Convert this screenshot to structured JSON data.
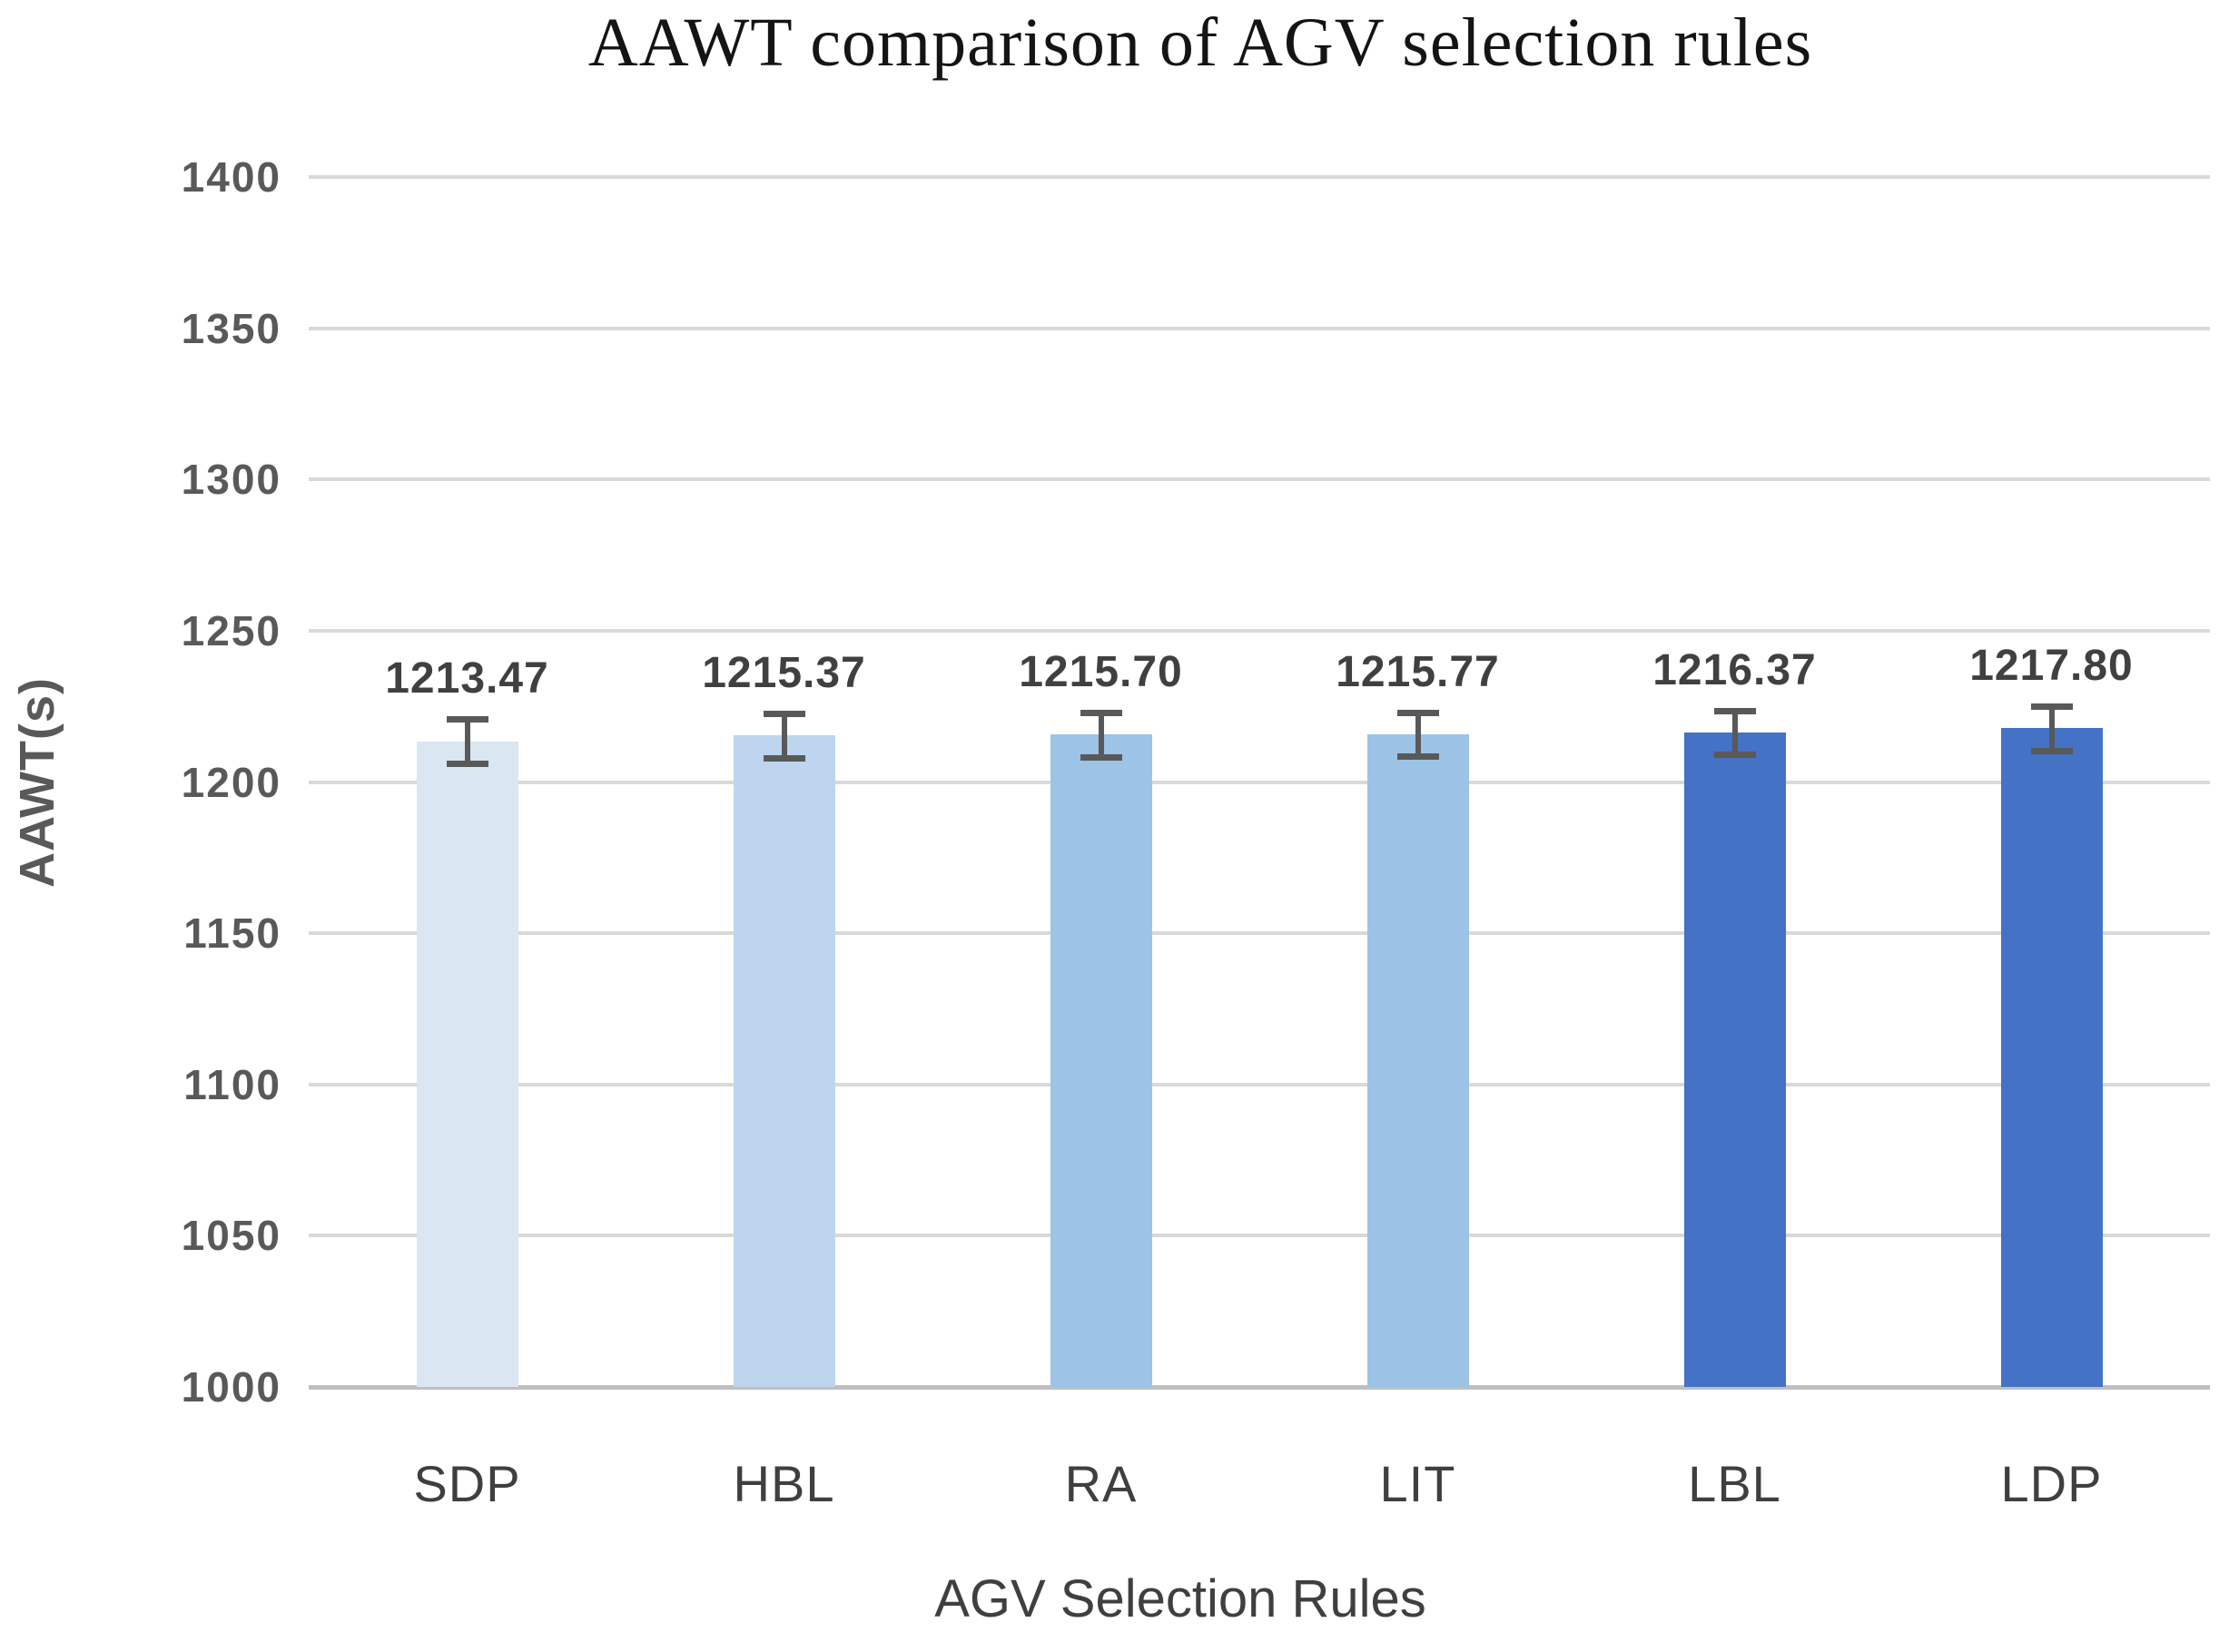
{
  "chart_data": {
    "type": "bar",
    "title": "AAWT comparison of AGV selection rules",
    "xlabel": "AGV Selection Rules",
    "ylabel": "AAWT(s)",
    "categories": [
      "SDP",
      "HBL",
      "RA",
      "LIT",
      "LBL",
      "LDP"
    ],
    "values": [
      1213.47,
      1215.37,
      1215.7,
      1215.77,
      1216.37,
      1217.8
    ],
    "value_labels": [
      "1213.47",
      "1215.37",
      "1215.70",
      "1215.77",
      "1216.37",
      "1217.80"
    ],
    "errors": [
      7.3,
      7.3,
      7.3,
      7.3,
      7.3,
      7.3
    ],
    "bar_colors": [
      "#dbe6f3",
      "#bdd5ee",
      "#9dc3e6",
      "#9cc3e5",
      "#4472c4",
      "#4472c4"
    ],
    "ylim": [
      1000,
      1400
    ],
    "yticks": [
      1000,
      1050,
      1100,
      1150,
      1200,
      1250,
      1300,
      1350,
      1400
    ],
    "grid": "horizontal",
    "legend": "none",
    "colors": {
      "gridline": "#d9d9d9",
      "axis_line": "#bfbfbf",
      "tick_text": "#595959",
      "label_text": "#3f3f3f",
      "value_label_text": "#404040",
      "error_bar": "#595959",
      "title_text": "#141414"
    }
  }
}
